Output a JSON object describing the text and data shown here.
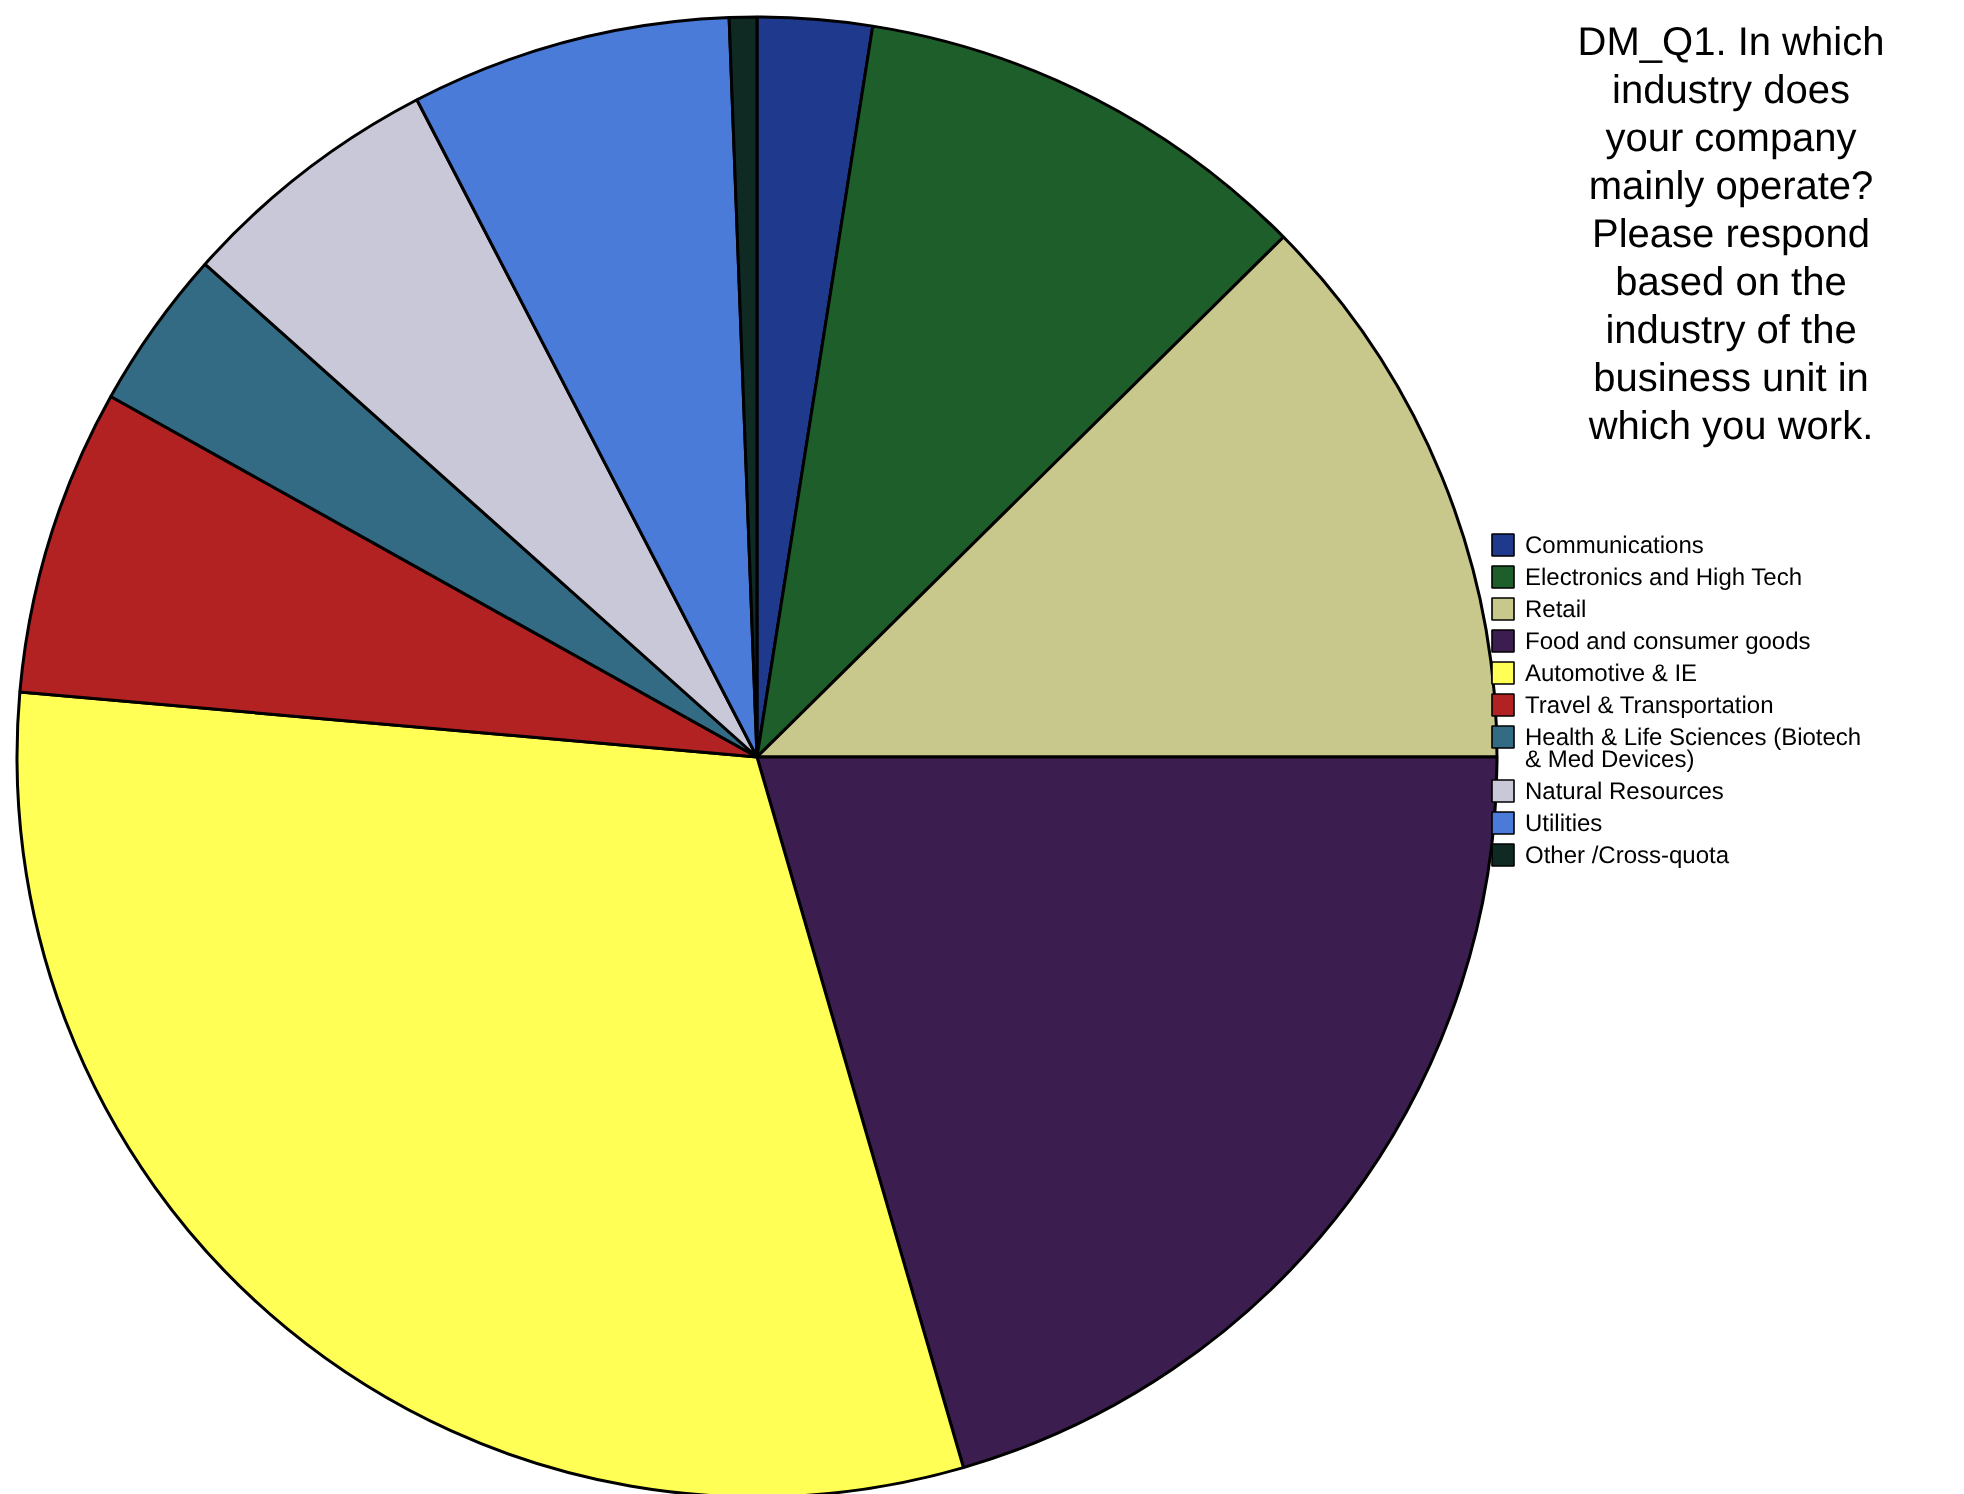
{
  "chart_data": {
    "type": "pie",
    "title": "DM_Q1. In which industry does your company mainly operate? Please respond based on the industry of the business unit in which you work.",
    "categories": [
      "Communications",
      "Electronics and High Tech",
      "Retail",
      "Food and consumer goods",
      "Automotive & IE",
      "Travel & Transportation",
      "Health & Life Sciences (Biotech & Med Devices)",
      "Natural Resources",
      "Utilities",
      "Other /Cross-quota"
    ],
    "values": [
      2.5,
      10.1,
      12.4,
      20.5,
      30.9,
      6.7,
      3.5,
      5.8,
      7.0,
      0.6
    ],
    "colors": [
      "#1f3a8c",
      "#1e5e2a",
      "#c8c88c",
      "#3b1e4f",
      "#ffff55",
      "#b22222",
      "#346b84",
      "#c8c8d8",
      "#4a7bd8",
      "#0f2a22"
    ],
    "legend": "right"
  }
}
